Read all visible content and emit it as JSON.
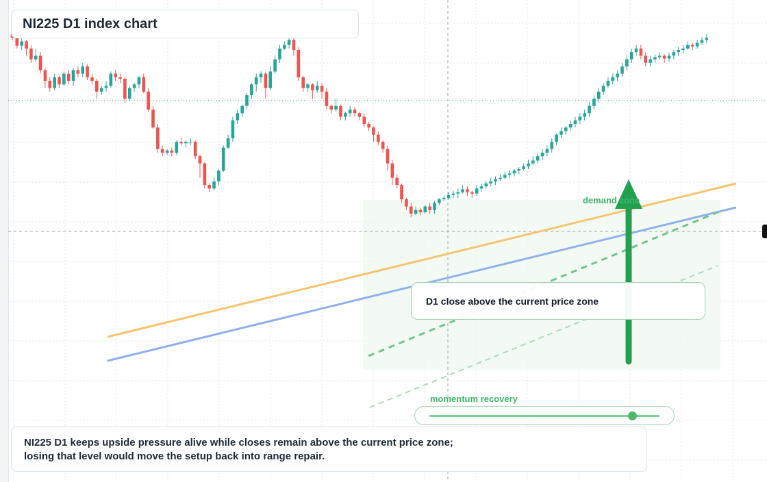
{
  "title": "NI225 D1 index chart",
  "callout": "D1 close above the current price zone",
  "zone_label": "demand zone",
  "momentum": {
    "label": "momentum recovery",
    "value": 0.88
  },
  "summary": {
    "line1": "NI225 D1 keeps upside pressure alive while closes remain above the current price zone;",
    "line2": "losing that level would move the setup back into range repair."
  },
  "colors": {
    "bull": "#26a69a",
    "bear": "#ef5350",
    "orange_line": "#f6c46d",
    "blue_line": "#8fb0ea",
    "accent_green": "#21a150",
    "grid": "#e3e6ea"
  },
  "chart_data": {
    "type": "candlestick",
    "title": "NI225 D1 index chart",
    "y_direction": "up",
    "candles": [
      [
        620,
        615,
        628,
        612
      ],
      [
        615,
        604,
        620,
        600
      ],
      [
        604,
        610,
        614,
        598
      ],
      [
        610,
        600,
        612,
        590
      ],
      [
        600,
        585,
        605,
        580
      ],
      [
        585,
        590,
        600,
        582
      ],
      [
        590,
        570,
        595,
        565
      ],
      [
        570,
        555,
        572,
        545
      ],
      [
        555,
        545,
        560,
        540
      ],
      [
        545,
        560,
        565,
        542
      ],
      [
        560,
        550,
        562,
        545
      ],
      [
        550,
        565,
        568,
        548
      ],
      [
        565,
        555,
        570,
        550
      ],
      [
        555,
        570,
        573,
        548
      ],
      [
        570,
        565,
        575,
        560
      ],
      [
        565,
        575,
        580,
        560
      ],
      [
        575,
        560,
        578,
        556
      ],
      [
        560,
        555,
        565,
        550
      ],
      [
        555,
        540,
        558,
        530
      ],
      [
        540,
        545,
        548,
        535
      ],
      [
        545,
        548,
        555,
        540
      ],
      [
        548,
        565,
        568,
        545
      ],
      [
        565,
        560,
        570,
        555
      ],
      [
        560,
        558,
        565,
        552
      ],
      [
        558,
        530,
        560,
        525
      ],
      [
        530,
        545,
        548,
        527
      ],
      [
        545,
        550,
        552,
        540
      ],
      [
        550,
        560,
        562,
        545
      ],
      [
        560,
        540,
        565,
        538
      ],
      [
        540,
        515,
        545,
        512
      ],
      [
        515,
        490,
        520,
        488
      ],
      [
        490,
        460,
        495,
        455
      ],
      [
        460,
        455,
        465,
        450
      ],
      [
        455,
        458,
        460,
        452
      ],
      [
        458,
        455,
        462,
        450
      ],
      [
        455,
        470,
        472,
        452
      ],
      [
        470,
        468,
        475,
        465
      ],
      [
        468,
        470,
        472,
        462
      ],
      [
        470,
        470,
        475,
        465
      ],
      [
        470,
        450,
        472,
        446
      ],
      [
        450,
        440,
        452,
        420
      ],
      [
        440,
        410,
        442,
        405
      ],
      [
        410,
        405,
        412,
        400
      ],
      [
        405,
        415,
        420,
        402
      ],
      [
        415,
        430,
        432,
        410
      ],
      [
        430,
        462,
        465,
        428
      ],
      [
        462,
        475,
        480,
        460
      ],
      [
        475,
        500,
        505,
        470
      ],
      [
        500,
        510,
        515,
        495
      ],
      [
        510,
        520,
        522,
        505
      ],
      [
        520,
        535,
        538,
        515
      ],
      [
        535,
        550,
        552,
        530
      ],
      [
        550,
        560,
        565,
        540
      ],
      [
        560,
        565,
        568,
        552
      ],
      [
        565,
        545,
        568,
        530
      ],
      [
        545,
        568,
        575,
        542
      ],
      [
        568,
        585,
        590,
        565
      ],
      [
        585,
        600,
        605,
        580
      ],
      [
        600,
        605,
        610,
        598
      ],
      [
        605,
        612,
        615,
        600
      ],
      [
        612,
        598,
        615,
        590
      ],
      [
        598,
        560,
        602,
        555
      ],
      [
        560,
        545,
        562,
        540
      ],
      [
        545,
        550,
        552,
        540
      ],
      [
        550,
        542,
        552,
        530
      ],
      [
        542,
        548,
        555,
        538
      ],
      [
        548,
        540,
        552,
        530
      ],
      [
        540,
        520,
        545,
        515
      ],
      [
        520,
        515,
        522,
        510
      ],
      [
        515,
        520,
        530,
        512
      ],
      [
        520,
        505,
        522,
        500
      ],
      [
        505,
        510,
        512,
        500
      ],
      [
        510,
        515,
        520,
        505
      ],
      [
        515,
        510,
        518,
        505
      ],
      [
        510,
        505,
        512,
        500
      ],
      [
        505,
        495,
        510,
        490
      ],
      [
        495,
        490,
        498,
        485
      ],
      [
        490,
        480,
        492,
        470
      ],
      [
        480,
        470,
        485,
        465
      ],
      [
        470,
        460,
        472,
        455
      ],
      [
        460,
        440,
        465,
        430
      ],
      [
        440,
        420,
        445,
        410
      ],
      [
        420,
        410,
        425,
        405
      ],
      [
        410,
        390,
        412,
        385
      ],
      [
        390,
        380,
        392,
        375
      ],
      [
        380,
        370,
        385,
        365
      ],
      [
        370,
        375,
        380,
        368
      ],
      [
        375,
        372,
        378,
        368
      ],
      [
        372,
        380,
        382,
        370
      ],
      [
        380,
        375,
        385,
        370
      ],
      [
        375,
        385,
        388,
        370
      ],
      [
        385,
        390,
        392,
        382
      ],
      [
        390,
        392,
        395,
        388
      ],
      [
        392,
        396,
        400,
        390
      ],
      [
        396,
        398,
        402,
        392
      ],
      [
        398,
        400,
        405,
        392
      ],
      [
        400,
        404,
        410,
        398
      ],
      [
        404,
        400,
        408,
        395
      ],
      [
        400,
        398,
        402,
        392
      ],
      [
        398,
        405,
        410,
        395
      ],
      [
        405,
        408,
        412,
        400
      ],
      [
        408,
        412,
        415,
        405
      ],
      [
        412,
        415,
        420,
        408
      ],
      [
        415,
        418,
        422,
        410
      ],
      [
        418,
        420,
        425,
        415
      ],
      [
        420,
        424,
        428,
        418
      ],
      [
        424,
        426,
        430,
        420
      ],
      [
        426,
        430,
        432,
        422
      ],
      [
        430,
        432,
        435,
        425
      ],
      [
        432,
        436,
        440,
        430
      ],
      [
        436,
        440,
        445,
        432
      ],
      [
        440,
        444,
        450,
        438
      ],
      [
        444,
        450,
        455,
        440
      ],
      [
        450,
        455,
        460,
        445
      ],
      [
        455,
        460,
        465,
        450
      ],
      [
        460,
        470,
        475,
        455
      ],
      [
        470,
        480,
        482,
        465
      ],
      [
        480,
        485,
        490,
        475
      ],
      [
        485,
        490,
        492,
        480
      ],
      [
        490,
        495,
        500,
        485
      ],
      [
        495,
        500,
        505,
        490
      ],
      [
        500,
        505,
        510,
        495
      ],
      [
        505,
        510,
        515,
        500
      ],
      [
        510,
        520,
        525,
        505
      ],
      [
        520,
        530,
        535,
        515
      ],
      [
        530,
        540,
        545,
        525
      ],
      [
        540,
        548,
        552,
        535
      ],
      [
        548,
        555,
        560,
        545
      ],
      [
        555,
        560,
        565,
        550
      ],
      [
        560,
        565,
        570,
        555
      ],
      [
        565,
        575,
        580,
        560
      ],
      [
        575,
        585,
        590,
        570
      ],
      [
        585,
        595,
        600,
        580
      ],
      [
        595,
        600,
        605,
        590
      ],
      [
        600,
        590,
        605,
        585
      ],
      [
        590,
        580,
        595,
        575
      ],
      [
        580,
        585,
        590,
        575
      ],
      [
        585,
        588,
        592,
        580
      ],
      [
        588,
        590,
        595,
        585
      ],
      [
        590,
        586,
        592,
        580
      ],
      [
        586,
        590,
        594,
        582
      ],
      [
        590,
        595,
        598,
        585
      ],
      [
        595,
        598,
        602,
        590
      ],
      [
        598,
        600,
        605,
        594
      ],
      [
        600,
        605,
        610,
        598
      ],
      [
        605,
        603,
        608,
        598
      ],
      [
        603,
        608,
        612,
        600
      ],
      [
        608,
        612,
        616,
        605
      ],
      [
        612,
        615,
        620,
        608
      ]
    ],
    "reference_lines": [
      {
        "name": "orange trendline"
      },
      {
        "name": "blue trendline"
      }
    ],
    "annotations": [
      "demand zone",
      "D1 close above the current price zone",
      "momentum recovery"
    ],
    "grid": true
  }
}
